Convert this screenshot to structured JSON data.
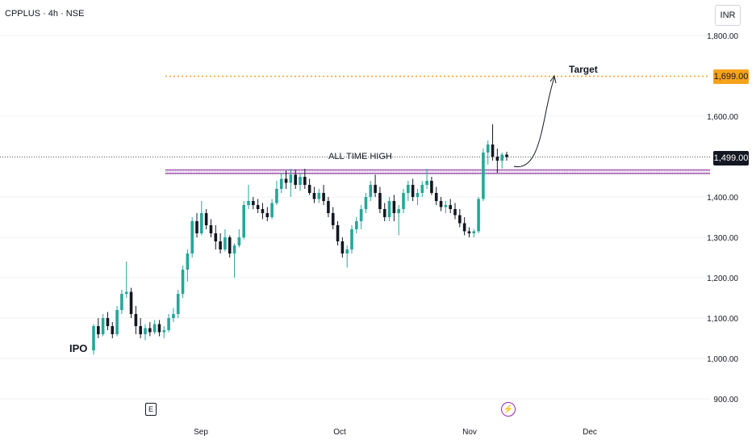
{
  "header": {
    "title": "CPPLUS · 4h · NSE"
  },
  "currency": "INR",
  "price_tags": {
    "target": "1,699.00",
    "last": "1,499.00"
  },
  "colors": {
    "up": "#26a69a",
    "down": "#131722",
    "target": "#f7a21b",
    "resistance": "#9c27b0",
    "last_line": "#131722"
  },
  "markers": {
    "earnings": "E",
    "dividend": "⚡"
  },
  "chart_data": {
    "type": "candlestick",
    "title": "CPPLUS · 4h · NSE",
    "y_ticks": [
      "1,800.00",
      "1,600.00",
      "1,400.00",
      "1,300.00",
      "1,200.00",
      "1,100.00",
      "1,000.00",
      "900.00"
    ],
    "ylim": [
      900,
      1800
    ],
    "x_ticks": [
      "Sep",
      "Oct",
      "Nov",
      "Dec"
    ],
    "annotations": [
      {
        "text": "IPO",
        "x": "mid-Aug",
        "y": 1020
      },
      {
        "text": "ALL TIME HIGH",
        "y": 1465
      },
      {
        "text": "Target",
        "y": 1699
      }
    ],
    "horizontal_lines": [
      {
        "name": "target",
        "y": 1699,
        "style": "dotted-orange"
      },
      {
        "name": "last-price",
        "y": 1499,
        "style": "dotted-dark"
      },
      {
        "name": "all-time-high-upper",
        "y": 1467,
        "style": "solid-purple"
      },
      {
        "name": "all-time-high-lower",
        "y": 1459,
        "style": "solid-purple"
      }
    ],
    "series": [
      {
        "candles": [
          [
            1020,
            1085,
            1010,
            1080
          ],
          [
            1080,
            1100,
            1050,
            1060
          ],
          [
            1060,
            1110,
            1055,
            1100
          ],
          [
            1100,
            1115,
            1070,
            1080
          ],
          [
            1080,
            1090,
            1050,
            1060
          ],
          [
            1060,
            1130,
            1055,
            1120
          ],
          [
            1120,
            1170,
            1110,
            1160
          ],
          [
            1160,
            1240,
            1150,
            1165
          ],
          [
            1165,
            1175,
            1100,
            1110
          ],
          [
            1110,
            1130,
            1060,
            1080
          ],
          [
            1080,
            1100,
            1050,
            1060
          ],
          [
            1060,
            1085,
            1045,
            1075
          ],
          [
            1075,
            1090,
            1055,
            1065
          ],
          [
            1065,
            1095,
            1060,
            1085
          ],
          [
            1085,
            1095,
            1055,
            1065
          ],
          [
            1065,
            1080,
            1050,
            1070
          ],
          [
            1070,
            1110,
            1065,
            1100
          ],
          [
            1100,
            1125,
            1090,
            1110
          ],
          [
            1110,
            1170,
            1100,
            1160
          ],
          [
            1160,
            1230,
            1150,
            1220
          ],
          [
            1220,
            1270,
            1190,
            1260
          ],
          [
            1260,
            1350,
            1250,
            1340
          ],
          [
            1340,
            1360,
            1300,
            1310
          ],
          [
            1310,
            1390,
            1305,
            1360
          ],
          [
            1360,
            1370,
            1320,
            1330
          ],
          [
            1330,
            1345,
            1300,
            1310
          ],
          [
            1310,
            1330,
            1270,
            1290
          ],
          [
            1290,
            1310,
            1260,
            1270
          ],
          [
            1270,
            1320,
            1265,
            1300
          ],
          [
            1300,
            1305,
            1250,
            1260
          ],
          [
            1260,
            1285,
            1200,
            1280
          ],
          [
            1280,
            1320,
            1275,
            1300
          ],
          [
            1300,
            1390,
            1295,
            1380
          ],
          [
            1380,
            1430,
            1370,
            1390
          ],
          [
            1390,
            1400,
            1370,
            1380
          ],
          [
            1380,
            1395,
            1360,
            1370
          ],
          [
            1370,
            1385,
            1345,
            1360
          ],
          [
            1360,
            1375,
            1340,
            1350
          ],
          [
            1350,
            1395,
            1345,
            1385
          ],
          [
            1385,
            1440,
            1380,
            1420
          ],
          [
            1420,
            1460,
            1410,
            1445
          ],
          [
            1445,
            1465,
            1420,
            1435
          ],
          [
            1435,
            1470,
            1400,
            1455
          ],
          [
            1455,
            1468,
            1420,
            1430
          ],
          [
            1430,
            1460,
            1415,
            1450
          ],
          [
            1450,
            1470,
            1420,
            1430
          ],
          [
            1430,
            1445,
            1405,
            1410
          ],
          [
            1410,
            1425,
            1385,
            1395
          ],
          [
            1395,
            1420,
            1385,
            1410
          ],
          [
            1410,
            1430,
            1380,
            1390
          ],
          [
            1390,
            1400,
            1350,
            1360
          ],
          [
            1360,
            1375,
            1320,
            1330
          ],
          [
            1330,
            1340,
            1280,
            1290
          ],
          [
            1290,
            1300,
            1250,
            1260
          ],
          [
            1260,
            1280,
            1225,
            1270
          ],
          [
            1270,
            1330,
            1260,
            1320
          ],
          [
            1320,
            1350,
            1310,
            1340
          ],
          [
            1340,
            1380,
            1320,
            1370
          ],
          [
            1370,
            1410,
            1360,
            1400
          ],
          [
            1400,
            1440,
            1390,
            1430
          ],
          [
            1430,
            1455,
            1400,
            1410
          ],
          [
            1410,
            1425,
            1360,
            1370
          ],
          [
            1370,
            1385,
            1340,
            1350
          ],
          [
            1350,
            1400,
            1340,
            1390
          ],
          [
            1390,
            1405,
            1340,
            1360
          ],
          [
            1360,
            1380,
            1305,
            1370
          ],
          [
            1370,
            1420,
            1360,
            1410
          ],
          [
            1410,
            1440,
            1390,
            1430
          ],
          [
            1430,
            1445,
            1390,
            1400
          ],
          [
            1400,
            1420,
            1380,
            1410
          ],
          [
            1410,
            1440,
            1400,
            1430
          ],
          [
            1430,
            1470,
            1420,
            1440
          ],
          [
            1440,
            1450,
            1405,
            1410
          ],
          [
            1410,
            1425,
            1380,
            1390
          ],
          [
            1390,
            1400,
            1365,
            1375
          ],
          [
            1375,
            1390,
            1360,
            1380
          ],
          [
            1380,
            1395,
            1360,
            1370
          ],
          [
            1370,
            1385,
            1345,
            1355
          ],
          [
            1355,
            1370,
            1325,
            1335
          ],
          [
            1335,
            1350,
            1305,
            1315
          ],
          [
            1315,
            1325,
            1300,
            1310
          ],
          [
            1310,
            1320,
            1300,
            1315
          ],
          [
            1315,
            1400,
            1310,
            1395
          ],
          [
            1395,
            1520,
            1390,
            1510
          ],
          [
            1510,
            1540,
            1480,
            1530
          ],
          [
            1530,
            1580,
            1490,
            1500
          ],
          [
            1500,
            1520,
            1460,
            1490
          ],
          [
            1490,
            1510,
            1470,
            1505
          ],
          [
            1505,
            1512,
            1490,
            1499
          ]
        ]
      }
    ]
  }
}
